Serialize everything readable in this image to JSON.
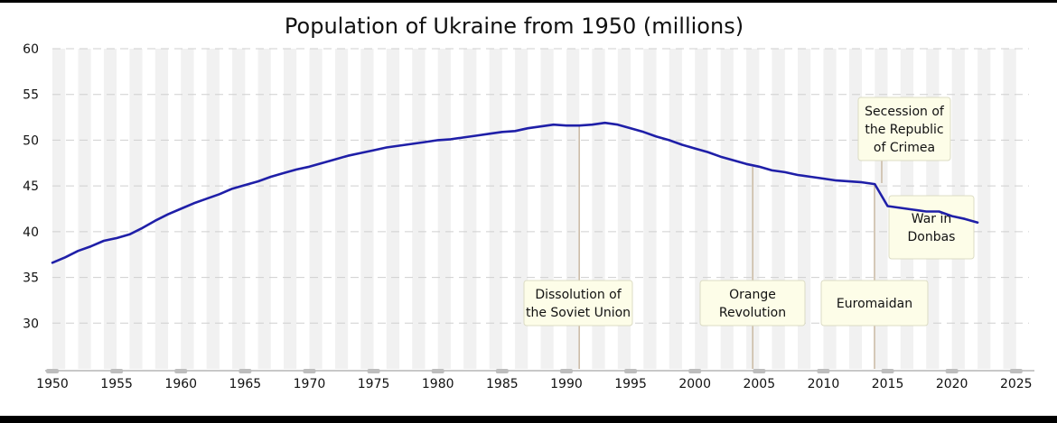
{
  "chart_data": {
    "type": "line",
    "title": "Population of Ukraine from 1950 (millions)",
    "xlabel": "",
    "ylabel": "",
    "xlim": [
      1950,
      2026
    ],
    "ylim": [
      25,
      60
    ],
    "x_ticks": [
      "1950",
      "1955",
      "1960",
      "1965",
      "1970",
      "1975",
      "1980",
      "1985",
      "1990",
      "1995",
      "2000",
      "2005",
      "2010",
      "2015",
      "2020",
      "2025"
    ],
    "y_ticks": [
      "30",
      "35",
      "40",
      "45",
      "50",
      "55",
      "60"
    ],
    "grid": "horizontal dashed, alternating vertical year bands",
    "line_color": "#1f1fa8",
    "series": [
      {
        "name": "",
        "x": [
          1950,
          1951,
          1952,
          1953,
          1954,
          1955,
          1956,
          1957,
          1958,
          1959,
          1960,
          1961,
          1962,
          1963,
          1964,
          1965,
          1966,
          1967,
          1968,
          1969,
          1970,
          1971,
          1972,
          1973,
          1974,
          1975,
          1976,
          1977,
          1978,
          1979,
          1980,
          1981,
          1982,
          1983,
          1984,
          1985,
          1986,
          1987,
          1988,
          1989,
          1990,
          1991,
          1992,
          1993,
          1994,
          1995,
          1996,
          1997,
          1998,
          1999,
          2000,
          2001,
          2002,
          2003,
          2004,
          2005,
          2006,
          2007,
          2008,
          2009,
          2010,
          2011,
          2012,
          2013,
          2014,
          2015,
          2016,
          2017,
          2018,
          2019,
          2020,
          2021,
          2022
        ],
        "values": [
          36.6,
          37.2,
          37.9,
          38.4,
          39.0,
          39.3,
          39.7,
          40.4,
          41.2,
          41.9,
          42.5,
          43.1,
          43.6,
          44.1,
          44.7,
          45.1,
          45.5,
          46.0,
          46.4,
          46.8,
          47.1,
          47.5,
          47.9,
          48.3,
          48.6,
          48.9,
          49.2,
          49.4,
          49.6,
          49.8,
          50.0,
          50.1,
          50.3,
          50.5,
          50.7,
          50.9,
          51.0,
          51.3,
          51.5,
          51.7,
          51.6,
          51.6,
          51.7,
          51.9,
          51.7,
          51.3,
          50.9,
          50.4,
          50.0,
          49.5,
          49.1,
          48.7,
          48.2,
          47.8,
          47.4,
          47.1,
          46.7,
          46.5,
          46.2,
          46.0,
          45.8,
          45.6,
          45.5,
          45.4,
          45.2,
          42.8,
          42.6,
          42.4,
          42.2,
          42.2,
          41.7,
          41.4,
          41.0
        ]
      }
    ],
    "annotations": [
      {
        "year": 1991,
        "lines": [
          "Dissolution of",
          "the Soviet Union"
        ]
      },
      {
        "year": 2004.5,
        "lines": [
          "Orange",
          "Revolution"
        ]
      },
      {
        "year": 2014,
        "lines": [
          "Euromaidan"
        ]
      },
      {
        "year": 2014.5,
        "lines": [
          "Secession of",
          "the Republic",
          "of Crimea"
        ]
      },
      {
        "year": 2014.9,
        "lines": [
          "War in",
          "Donbas"
        ]
      }
    ]
  }
}
